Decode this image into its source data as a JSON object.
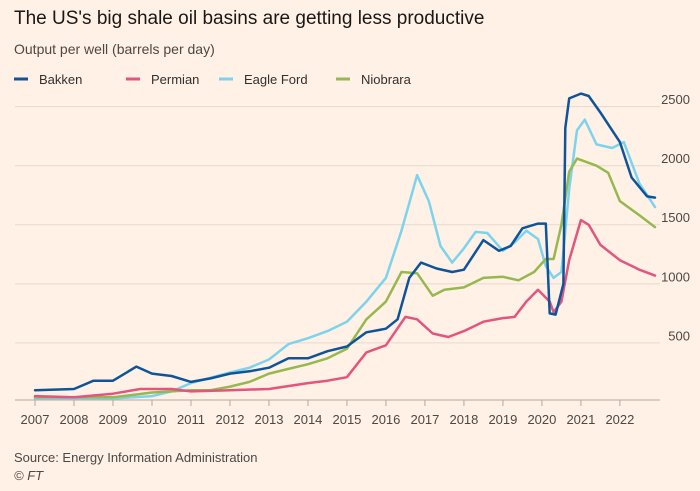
{
  "chart_data": {
    "type": "line",
    "title": "The US's big shale oil basins are getting less productive",
    "subtitle": "Output per well (barrels per day)",
    "source": "Source: Energy Information Administration",
    "credit": "© FT",
    "xlim": [
      2007,
      2022.9
    ],
    "xticks": [
      2007,
      2008,
      2009,
      2010,
      2011,
      2012,
      2013,
      2014,
      2015,
      2016,
      2017,
      2018,
      2019,
      2020,
      2021,
      2022
    ],
    "ylim": [
      0,
      2700
    ],
    "yticks": [
      500,
      1000,
      1500,
      2000,
      2500
    ],
    "grid": true,
    "legend": "top-left",
    "series": [
      {
        "name": "Bakken",
        "color": "#0f5499",
        "x": [
          2007,
          2008,
          2008.5,
          2009,
          2009.6,
          2010,
          2010.5,
          2011,
          2011.5,
          2012,
          2012.5,
          2013,
          2013.5,
          2014,
          2014.5,
          2015,
          2015.5,
          2016,
          2016.3,
          2016.6,
          2016.9,
          2017.3,
          2017.7,
          2018,
          2018.5,
          2018.9,
          2019.2,
          2019.5,
          2019.9,
          2020.1,
          2020.2,
          2020.35,
          2020.55,
          2020.6,
          2020.7,
          2021,
          2021.2,
          2021.5,
          2022,
          2022.3,
          2022.7,
          2022.9
        ],
        "values": [
          100,
          110,
          180,
          180,
          300,
          240,
          220,
          170,
          200,
          240,
          260,
          290,
          370,
          370,
          430,
          470,
          590,
          620,
          700,
          1050,
          1180,
          1130,
          1100,
          1120,
          1370,
          1280,
          1320,
          1470,
          1510,
          1510,
          750,
          740,
          1000,
          2320,
          2570,
          2610,
          2590,
          2450,
          2200,
          1900,
          1740,
          1730
        ]
      },
      {
        "name": "Permian",
        "color": "#e2557f",
        "x": [
          2007,
          2008,
          2009,
          2009.7,
          2010.5,
          2011,
          2012,
          2013,
          2014,
          2014.5,
          2015,
          2015.5,
          2016,
          2016.5,
          2016.8,
          2017.2,
          2017.6,
          2018,
          2018.5,
          2019,
          2019.3,
          2019.6,
          2019.9,
          2020.2,
          2020.3,
          2020.5,
          2020.7,
          2021,
          2021.2,
          2021.5,
          2022,
          2022.5,
          2022.9
        ],
        "values": [
          50,
          40,
          70,
          110,
          110,
          90,
          100,
          110,
          160,
          180,
          210,
          420,
          480,
          720,
          700,
          580,
          550,
          600,
          680,
          710,
          720,
          850,
          950,
          850,
          760,
          850,
          1200,
          1540,
          1500,
          1330,
          1200,
          1120,
          1070
        ]
      },
      {
        "name": "Eagle Ford",
        "color": "#7dd3ec",
        "x": [
          2007,
          2008,
          2009,
          2010,
          2010.5,
          2011,
          2012,
          2012.5,
          2013,
          2013.5,
          2014,
          2014.5,
          2015,
          2015.5,
          2016,
          2016.4,
          2016.8,
          2017.1,
          2017.4,
          2017.7,
          2018,
          2018.3,
          2018.6,
          2019,
          2019.3,
          2019.6,
          2019.9,
          2020.1,
          2020.3,
          2020.5,
          2020.7,
          2020.9,
          2021.1,
          2021.4,
          2021.8,
          2022.1,
          2022.5,
          2022.9
        ],
        "values": [
          30,
          30,
          30,
          50,
          90,
          160,
          250,
          290,
          360,
          490,
          540,
          600,
          680,
          850,
          1050,
          1450,
          1920,
          1700,
          1320,
          1180,
          1300,
          1440,
          1430,
          1280,
          1350,
          1450,
          1380,
          1150,
          1050,
          1100,
          1800,
          2300,
          2390,
          2180,
          2150,
          2200,
          1850,
          1650
        ]
      },
      {
        "name": "Niobrara",
        "color": "#96b84f",
        "x": [
          2007,
          2009,
          2010,
          2011,
          2011.5,
          2012,
          2012.5,
          2013,
          2013.5,
          2014,
          2014.5,
          2015,
          2015.5,
          2016,
          2016.4,
          2016.8,
          2017.2,
          2017.5,
          2018,
          2018.5,
          2019,
          2019.4,
          2019.8,
          2020.1,
          2020.3,
          2020.5,
          2020.7,
          2020.9,
          2021.4,
          2021.7,
          2022,
          2022.5,
          2022.9
        ],
        "values": [
          40,
          40,
          80,
          100,
          100,
          130,
          170,
          240,
          280,
          320,
          370,
          450,
          700,
          850,
          1100,
          1090,
          900,
          950,
          970,
          1050,
          1060,
          1030,
          1100,
          1210,
          1210,
          1500,
          1950,
          2060,
          2000,
          1940,
          1700,
          1580,
          1480
        ]
      }
    ]
  }
}
